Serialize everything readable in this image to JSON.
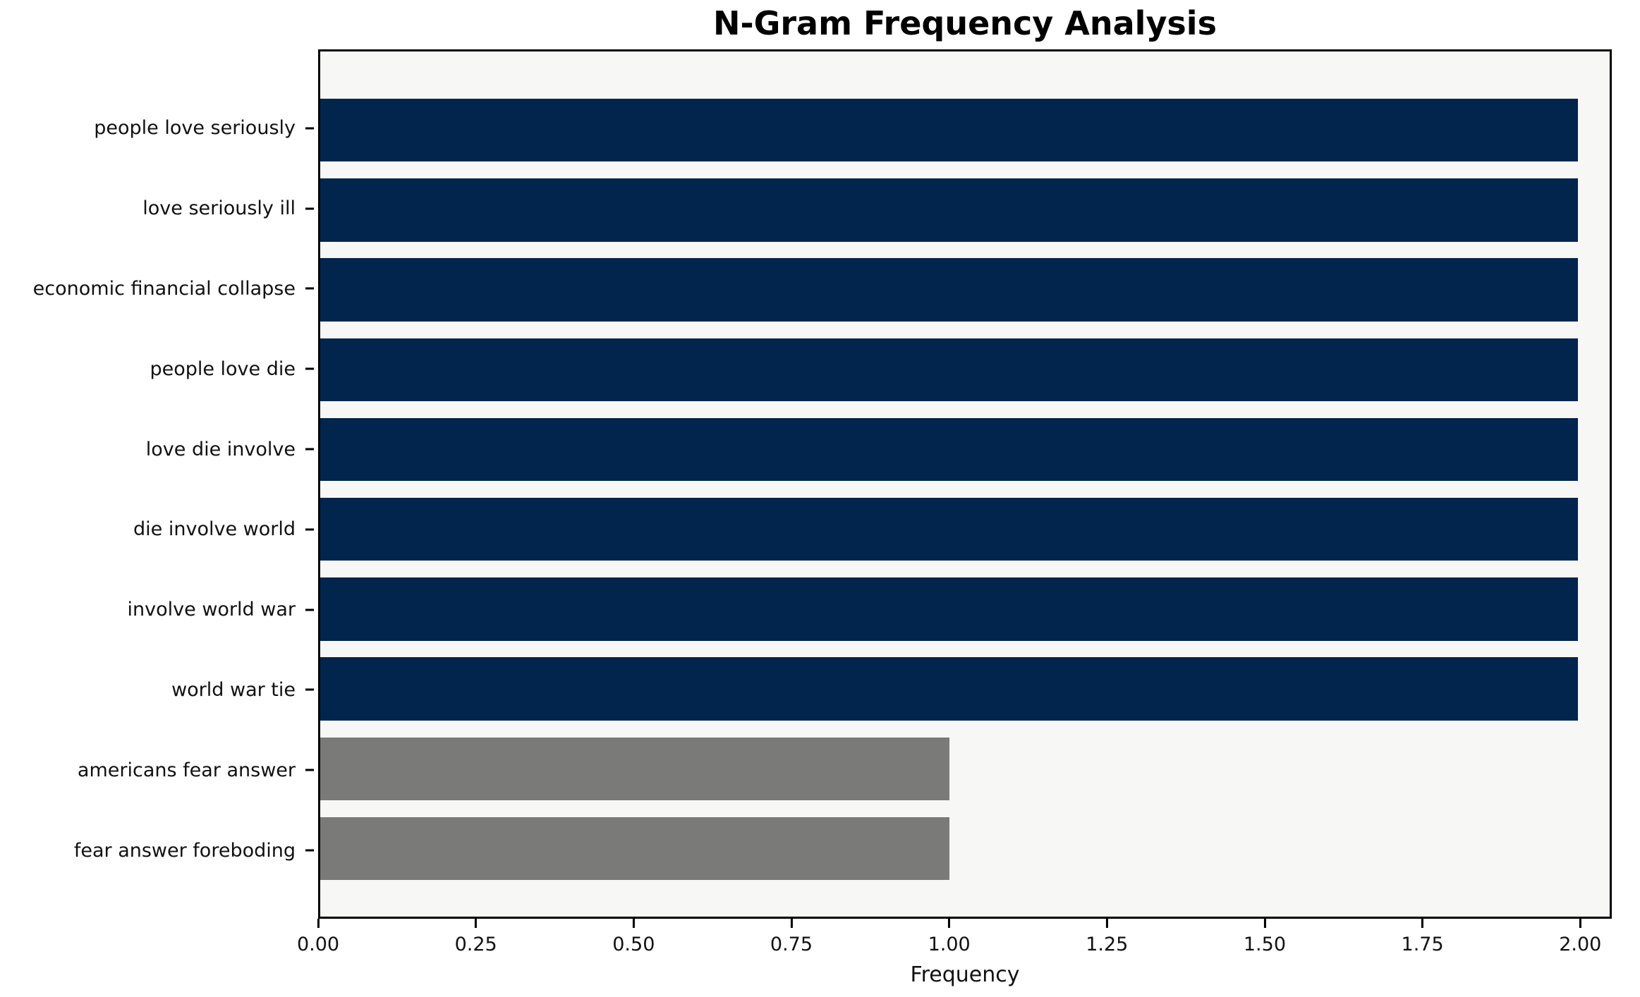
{
  "chart_data": {
    "type": "bar",
    "orientation": "horizontal",
    "title": "N-Gram Frequency Analysis",
    "xlabel": "Frequency",
    "ylabel": "",
    "categories": [
      "people love seriously",
      "love seriously ill",
      "economic financial collapse",
      "people love die",
      "love die involve",
      "die involve world",
      "involve world war",
      "world war tie",
      "americans fear answer",
      "fear answer foreboding"
    ],
    "values": [
      2,
      2,
      2,
      2,
      2,
      2,
      2,
      2,
      1,
      1
    ],
    "bar_colors": [
      "#02254d",
      "#02254d",
      "#02254d",
      "#02254d",
      "#02254d",
      "#02254d",
      "#02254d",
      "#02254d",
      "#7a7a78",
      "#7a7a78"
    ],
    "x_ticks": [
      0,
      0.25,
      0.5,
      0.75,
      1.0,
      1.25,
      1.5,
      1.75,
      2.0
    ],
    "x_tick_labels": [
      "0.00",
      "0.25",
      "0.50",
      "0.75",
      "1.00",
      "1.25",
      "1.50",
      "1.75",
      "2.00"
    ],
    "xlim": [
      0,
      2.05
    ],
    "grid": false,
    "legend": false,
    "colors": {
      "navy_bar": "#02254d",
      "gray_bar": "#7a7a78",
      "plot_background": "#f7f7f6",
      "spine": "#000000",
      "figure_background": "#ffffff",
      "text": "#111111"
    }
  }
}
